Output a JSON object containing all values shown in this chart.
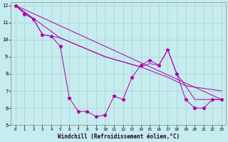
{
  "bg_color": "#c5ecee",
  "grid_color": "#b0d0d0",
  "line_color": "#aa00aa",
  "xlim": [
    -0.5,
    23.5
  ],
  "ylim": [
    5,
    12.2
  ],
  "yticks": [
    5,
    6,
    7,
    8,
    9,
    10,
    11,
    12
  ],
  "xticks": [
    0,
    1,
    2,
    3,
    4,
    5,
    6,
    7,
    8,
    9,
    10,
    11,
    12,
    13,
    14,
    15,
    16,
    17,
    18,
    19,
    20,
    21,
    22,
    23
  ],
  "xlabel": "Windchill (Refroidissement éolien,°C)",
  "main_x": [
    0,
    1,
    2,
    3,
    4,
    5,
    6,
    7,
    8,
    9,
    10,
    11,
    12,
    13,
    14,
    15,
    16,
    17,
    18,
    19,
    20,
    21,
    22,
    23
  ],
  "main_y": [
    12,
    11.5,
    11.2,
    10.3,
    10.2,
    9.6,
    6.6,
    5.8,
    5.8,
    5.5,
    5.6,
    6.7,
    6.5,
    7.8,
    8.5,
    8.8,
    8.5,
    9.4,
    8.0,
    6.5,
    6.0,
    6.0,
    6.5,
    6.5
  ],
  "line2_x": [
    0,
    2,
    3,
    4,
    5,
    10,
    14,
    15,
    16,
    17,
    18,
    19,
    20,
    21,
    22,
    23
  ],
  "line2_y": [
    12,
    11.2,
    10.3,
    10.2,
    10.1,
    9.0,
    8.4,
    8.6,
    8.5,
    9.4,
    8.0,
    7.3,
    6.5,
    6.5,
    6.5,
    6.5
  ],
  "line3_x": [
    0,
    23
  ],
  "line3_y": [
    12.0,
    6.5
  ],
  "line4_x": [
    0,
    5,
    10,
    14,
    17,
    19,
    23
  ],
  "line4_y": [
    12.0,
    10.1,
    9.0,
    8.4,
    7.8,
    7.3,
    7.0
  ]
}
